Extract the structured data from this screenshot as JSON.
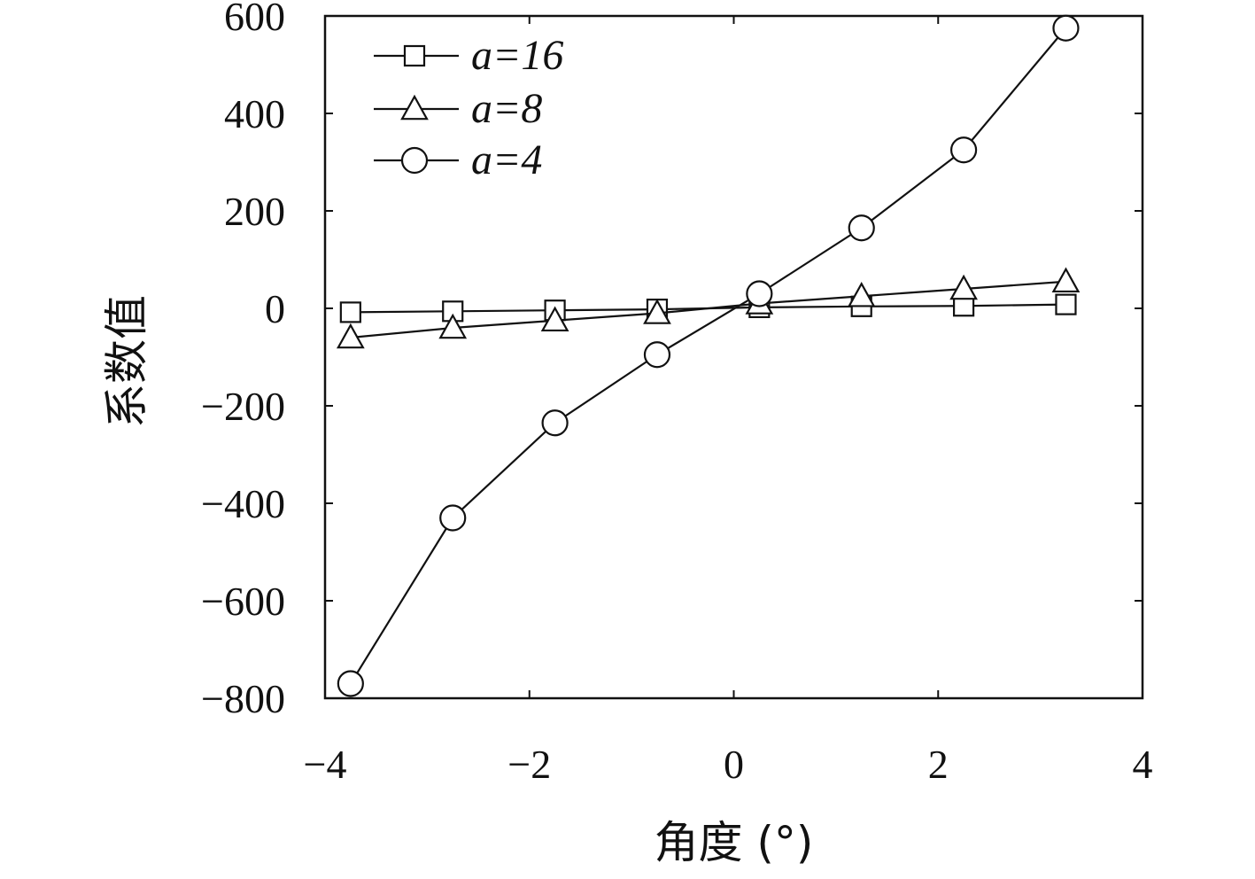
{
  "chart_data": {
    "type": "line",
    "title": "",
    "xlabel": "角度 (°)",
    "ylabel": "系数值",
    "xlim": [
      -4,
      4
    ],
    "ylim": [
      -800,
      600
    ],
    "xticks": [
      -4,
      -2,
      0,
      2,
      4
    ],
    "yticks": [
      -800,
      -600,
      -400,
      -200,
      0,
      200,
      400,
      600
    ],
    "xtick_labels": [
      "−4",
      "−2",
      "0",
      "2",
      "4"
    ],
    "ytick_labels": [
      "−800",
      "−600",
      "−400",
      "−200",
      "0",
      "200",
      "400",
      "600"
    ],
    "grid": false,
    "legend_position": "top-left",
    "x": [
      -3.75,
      -2.75,
      -1.75,
      -0.75,
      0.25,
      1.25,
      2.25,
      3.25
    ],
    "series": [
      {
        "name": "a=16",
        "marker": "square",
        "values": [
          -8,
          -6,
          -4,
          -2,
          2,
          4,
          5,
          8
        ]
      },
      {
        "name": "a=8",
        "marker": "triangle",
        "values": [
          -60,
          -40,
          -25,
          -10,
          10,
          25,
          40,
          55
        ]
      },
      {
        "name": "a=4",
        "marker": "circle",
        "values": [
          -770,
          -430,
          -235,
          -95,
          30,
          165,
          325,
          575
        ]
      }
    ],
    "colors": {
      "line": "#111111",
      "background": "#ffffff"
    }
  }
}
